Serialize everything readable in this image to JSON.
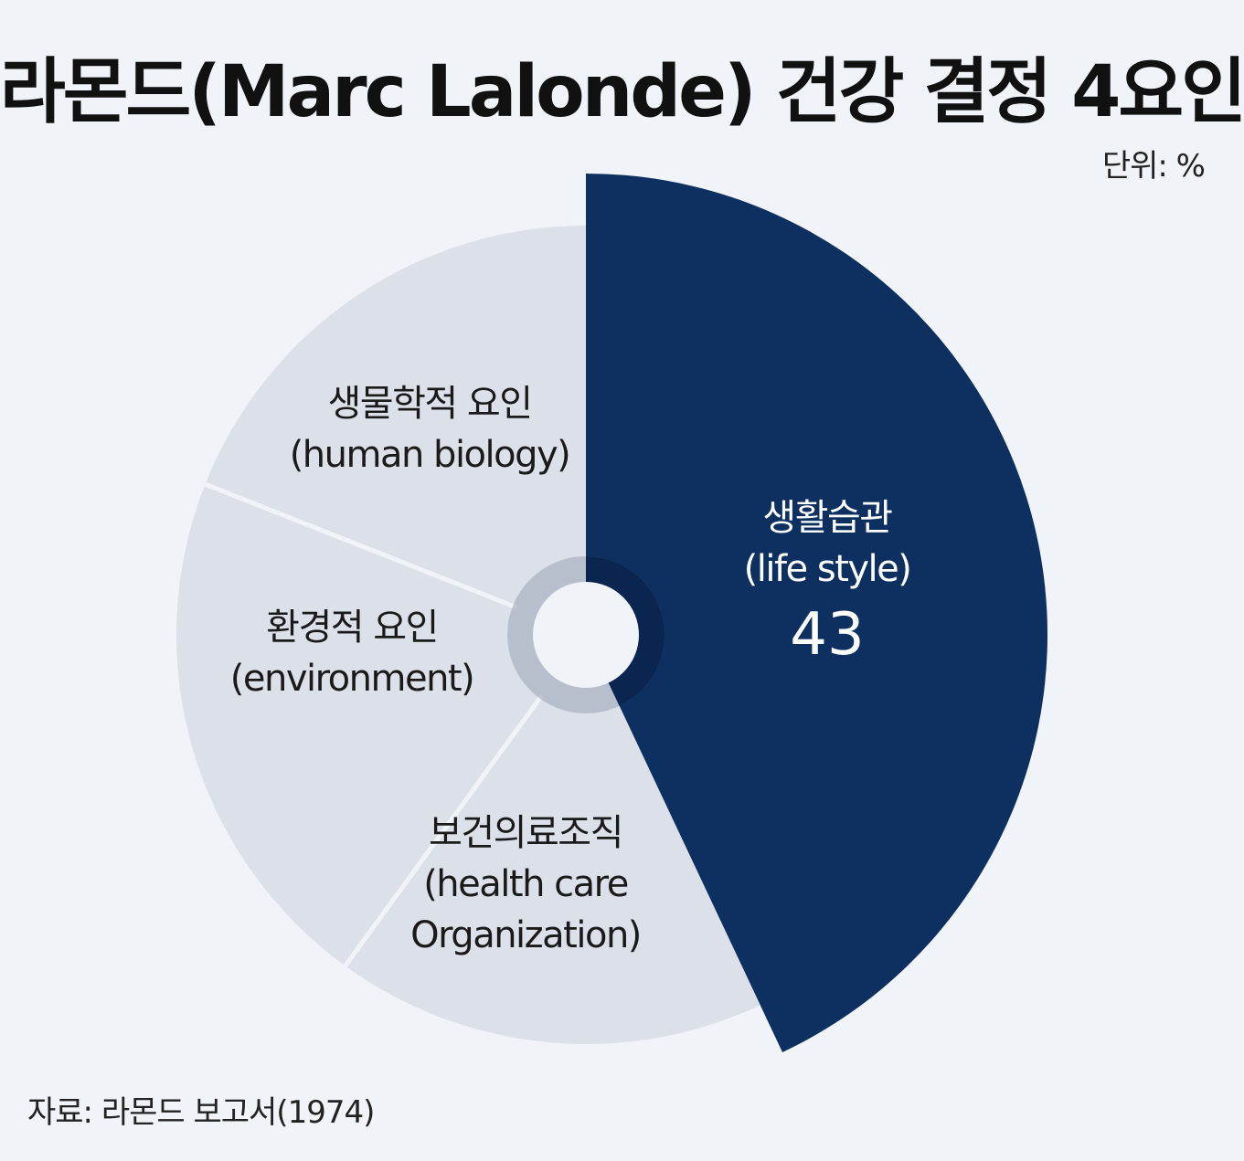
{
  "chart_data": {
    "type": "pie",
    "title": "라몬드(Marc Lalonde) 건강 결정 4요인",
    "unit": "단위: %",
    "source": "자료: 라몬드 보고서(1974)",
    "slices": [
      {
        "name": "생활습관",
        "name_en": "(life style)",
        "value": 43,
        "value_label": "43",
        "highlight": true,
        "color": "#0e3060"
      },
      {
        "name": "보건의료조직",
        "name_en": "(health care",
        "name_en2": "Organization)",
        "value": 17,
        "value_label": "",
        "highlight": false,
        "color": "#dce1e9"
      },
      {
        "name": "환경적 요인",
        "name_en": "(environment)",
        "value": 21,
        "value_label": "",
        "highlight": false,
        "color": "#dce1e9"
      },
      {
        "name": "생물학적 요인",
        "name_en": "(human biology)",
        "value": 19,
        "value_label": "",
        "highlight": false,
        "color": "#dce1e9"
      }
    ],
    "colors": {
      "background": "#f0f3f8",
      "highlight": "#0e3060",
      "other": "#dce1e9",
      "separator": "#f0f3f8",
      "ring_dark": "#9aa4b4"
    }
  }
}
